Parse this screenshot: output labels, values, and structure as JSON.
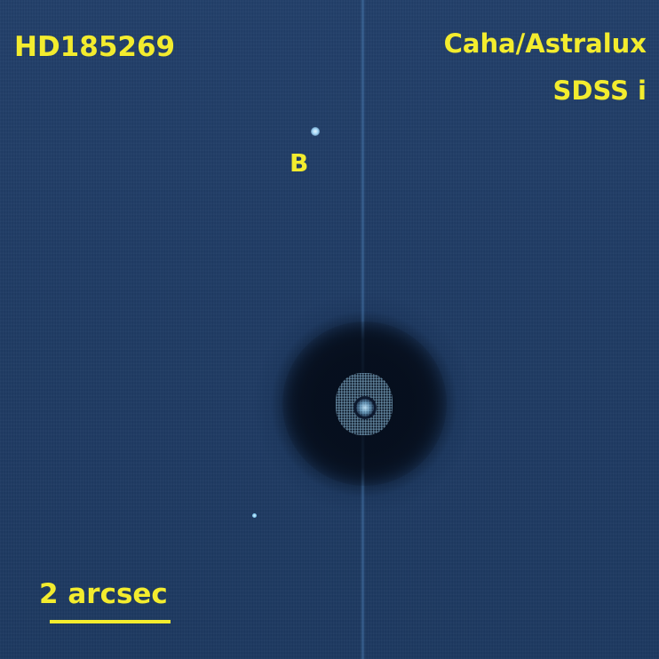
{
  "image": {
    "target_name": "HD185269",
    "instrument": "Caha/Astralux",
    "filter": "SDSS i",
    "companion_label": "B",
    "scale_bar_label": "2 arcsec"
  },
  "colors": {
    "label": "#f3ec2e",
    "background": "#1f3b64",
    "star": "#9fd4f5"
  }
}
